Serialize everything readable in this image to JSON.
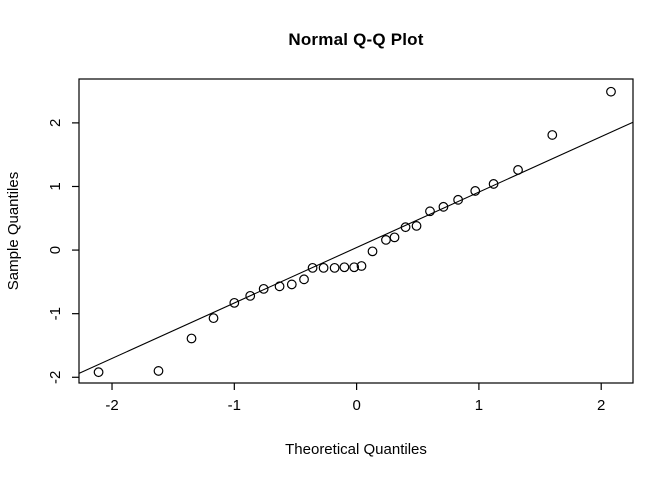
{
  "chart_data": {
    "type": "scatter",
    "title": "Normal Q-Q Plot",
    "xlabel": "Theoretical Quantiles",
    "ylabel": "Sample Quantiles",
    "xlim": [
      -2.27,
      2.26
    ],
    "ylim": [
      -2.09,
      2.69
    ],
    "x_ticks": [
      -2,
      -1,
      0,
      1,
      2
    ],
    "y_ticks": [
      -2,
      -1,
      0,
      1,
      2
    ],
    "grid": false,
    "legend": "none",
    "marker": "open-circle",
    "marker_color": "#000000",
    "line_color": "#000000",
    "background": "#ffffff",
    "points": [
      [
        -2.11,
        -1.92
      ],
      [
        -1.62,
        -1.9
      ],
      [
        -1.35,
        -1.39
      ],
      [
        -1.17,
        -1.07
      ],
      [
        -1.0,
        -0.83
      ],
      [
        -0.87,
        -0.72
      ],
      [
        -0.76,
        -0.61
      ],
      [
        -0.63,
        -0.57
      ],
      [
        -0.53,
        -0.54
      ],
      [
        -0.43,
        -0.46
      ],
      [
        -0.36,
        -0.28
      ],
      [
        -0.27,
        -0.28
      ],
      [
        -0.18,
        -0.28
      ],
      [
        -0.1,
        -0.27
      ],
      [
        -0.02,
        -0.27
      ],
      [
        0.04,
        -0.25
      ],
      [
        0.13,
        -0.02
      ],
      [
        0.24,
        0.16
      ],
      [
        0.31,
        0.2
      ],
      [
        0.4,
        0.36
      ],
      [
        0.49,
        0.38
      ],
      [
        0.6,
        0.61
      ],
      [
        0.71,
        0.68
      ],
      [
        0.83,
        0.79
      ],
      [
        0.97,
        0.93
      ],
      [
        1.12,
        1.04
      ],
      [
        1.32,
        1.26
      ],
      [
        1.6,
        1.81
      ],
      [
        2.08,
        2.49
      ]
    ],
    "reference_line": {
      "intercept": 0.04,
      "slope": 0.872
    }
  }
}
